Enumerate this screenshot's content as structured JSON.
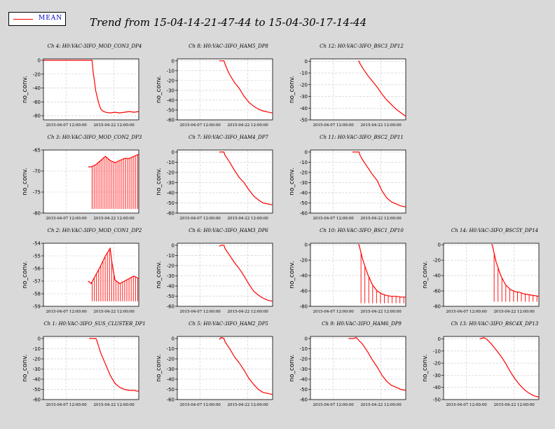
{
  "legend": {
    "label": "MEAN",
    "color": "#ff0000"
  },
  "title": "Trend from 15-04-14-21-47-44 to 15-04-30-17-14-44",
  "colors": {
    "line": "#ff0000",
    "grid": "#c8c8c8",
    "panel_bg": "#ffffff",
    "page_bg": "#d9d9d9"
  },
  "chart_data": [
    {
      "type": "line",
      "title": "Ch 4: H0:VAC-3IFO_MOD_CON3_DP4",
      "ylabel": "no_conv.",
      "ylim": [
        -86,
        2
      ],
      "yticks": [
        0,
        -20,
        -40,
        -60,
        -80
      ],
      "xticks": [
        "2015-04-07 12:00:00",
        "2015-04-22 12:00:00"
      ],
      "x": [
        0.0,
        0.51,
        0.52,
        0.55,
        0.58,
        0.6,
        0.62,
        0.65,
        0.7,
        0.75,
        0.8,
        0.85,
        0.9,
        0.95,
        1.0
      ],
      "y": [
        0,
        0,
        -15,
        -45,
        -62,
        -70,
        -73,
        -75,
        -76,
        -75,
        -76,
        -75,
        -74,
        -75,
        -74
      ]
    },
    {
      "type": "line",
      "title": "Ch 8: H0:VAC-3IFO_HAM5_DP8",
      "ylabel": "no_conv.",
      "ylim": [
        -60,
        2
      ],
      "yticks": [
        0,
        -10,
        -20,
        -30,
        -40,
        -50,
        -60
      ],
      "xticks": [
        "2015-04-07 12:00:00",
        "2015-04-22 12:00:00"
      ],
      "x": [
        0.44,
        0.49,
        0.5,
        0.52,
        0.55,
        0.6,
        0.65,
        0.7,
        0.75,
        0.8,
        0.85,
        0.9,
        0.95,
        1.0
      ],
      "y": [
        0,
        0,
        -3,
        -8,
        -14,
        -22,
        -28,
        -36,
        -42,
        -46,
        -49,
        -51,
        -52,
        -53
      ]
    },
    {
      "type": "line",
      "title": "Ch 12: H0:VAC-3IFO_BSC3_DP12",
      "ylabel": "no_conv.",
      "ylim": [
        -50,
        2
      ],
      "yticks": [
        0,
        -10,
        -20,
        -30,
        -40,
        -50
      ],
      "xticks": [
        "2015-04-07 12:00:00",
        "2015-04-22 12:00:00"
      ],
      "x": [
        0.5,
        0.51,
        0.52,
        0.55,
        0.6,
        0.65,
        0.7,
        0.75,
        0.8,
        0.85,
        0.9,
        0.95,
        1.0
      ],
      "y": [
        0,
        0,
        -2,
        -6,
        -12,
        -17,
        -22,
        -28,
        -33,
        -37,
        -41,
        -44,
        -47
      ]
    },
    {
      "type": "line",
      "title": "Ch 3: H0:VAC-3IFO_MOD_CON2_DP3",
      "ylabel": "no_conv.",
      "ylim": [
        -80,
        -65
      ],
      "yticks": [
        -65,
        -70,
        -75,
        -80
      ],
      "xticks": [
        "2015-04-07 12:00:00",
        "2015-04-22 12:00:00"
      ],
      "x": [
        0.47,
        0.5,
        0.55,
        0.6,
        0.65,
        0.7,
        0.75,
        0.8,
        0.85,
        0.9,
        0.95,
        1.0
      ],
      "y": [
        -69,
        -69,
        -68.5,
        -67.5,
        -66.5,
        -67.5,
        -68,
        -67.5,
        -67,
        -67,
        -66.5,
        -66
      ],
      "spikes_to": -79,
      "spike_count": 24
    },
    {
      "type": "line",
      "title": "Ch 7: H0:VAC-3IFO_HAM4_DP7",
      "ylabel": "no_conv.",
      "ylim": [
        -60,
        2
      ],
      "yticks": [
        0,
        -10,
        -20,
        -30,
        -40,
        -50,
        -60
      ],
      "xticks": [
        "2015-04-07 12:00:00",
        "2015-04-22 12:00:00"
      ],
      "x": [
        0.44,
        0.49,
        0.5,
        0.55,
        0.6,
        0.65,
        0.7,
        0.75,
        0.8,
        0.85,
        0.9,
        0.95,
        1.0
      ],
      "y": [
        0,
        0,
        -3,
        -10,
        -18,
        -25,
        -30,
        -37,
        -43,
        -47,
        -50,
        -51,
        -52
      ]
    },
    {
      "type": "line",
      "title": "Ch 11: H0:VAC-3IFO_BSC2_DP11",
      "ylabel": "no_conv.",
      "ylim": [
        -60,
        2
      ],
      "yticks": [
        0,
        -10,
        -20,
        -30,
        -40,
        -50,
        -60
      ],
      "xticks": [
        "2015-04-07 12:00:00",
        "2015-04-22 12:00:00"
      ],
      "x": [
        0.44,
        0.51,
        0.52,
        0.55,
        0.6,
        0.65,
        0.7,
        0.75,
        0.8,
        0.85,
        0.9,
        0.95,
        1.0
      ],
      "y": [
        0,
        0,
        -3,
        -8,
        -15,
        -22,
        -28,
        -38,
        -45,
        -49,
        -51,
        -53,
        -54
      ]
    },
    {
      "type": "line",
      "title": "Ch 2: H0:VAC-3IFO_MOD_CON1_DP2",
      "ylabel": "no_conv.",
      "ylim": [
        -59,
        -54
      ],
      "yticks": [
        -54,
        -55,
        -56,
        -57,
        -58,
        -59
      ],
      "xticks": [
        "2015-04-07 12:00:00",
        "2015-04-22 12:00:00"
      ],
      "x": [
        0.47,
        0.5,
        0.55,
        0.6,
        0.65,
        0.7,
        0.72,
        0.75,
        0.8,
        0.85,
        0.9,
        0.95,
        1.0
      ],
      "y": [
        -57,
        -57.2,
        -56.5,
        -55.8,
        -55.0,
        -54.4,
        -55.6,
        -56.9,
        -57.2,
        -57.0,
        -56.8,
        -56.6,
        -56.8
      ],
      "spikes_to": -58.6,
      "spike_count": 22
    },
    {
      "type": "line",
      "title": "Ch 6: H0:VAC-3IFO_HAM3_DP6",
      "ylabel": "no_conv.",
      "ylim": [
        -60,
        2
      ],
      "yticks": [
        0,
        -10,
        -20,
        -30,
        -40,
        -50,
        -60
      ],
      "xticks": [
        "2015-04-07 12:00:00",
        "2015-04-22 12:00:00"
      ],
      "x": [
        0.44,
        0.46,
        0.49,
        0.5,
        0.55,
        0.6,
        0.65,
        0.7,
        0.75,
        0.8,
        0.85,
        0.9,
        0.95,
        1.0
      ],
      "y": [
        -1,
        0,
        0,
        -3,
        -10,
        -17,
        -23,
        -30,
        -38,
        -45,
        -49,
        -52,
        -54,
        -55
      ]
    },
    {
      "type": "line",
      "title": "Ch 10: H0:VAC-3IFO_BSC1_DP10",
      "ylabel": "no_conv.",
      "ylim": [
        -80,
        2
      ],
      "yticks": [
        0,
        -20,
        -40,
        -60,
        -80
      ],
      "xticks": [
        "2015-04-07 12:00:00",
        "2015-04-22 12:00:00"
      ],
      "x": [
        0.5,
        0.51,
        0.52,
        0.55,
        0.6,
        0.65,
        0.7,
        0.75,
        0.8,
        0.85,
        0.9,
        0.95,
        1.0
      ],
      "y": [
        0,
        0,
        -5,
        -20,
        -38,
        -52,
        -60,
        -64,
        -66,
        -67,
        -67,
        -68,
        -68
      ],
      "spikes_to": -76,
      "spike_count": 12
    },
    {
      "type": "line",
      "title": "Ch 14: H0:VAC-3IFO_BSC5Y_DP14",
      "ylabel": "no_conv.",
      "ylim": [
        -80,
        2
      ],
      "yticks": [
        0,
        -20,
        -40,
        -60,
        -80
      ],
      "xticks": [
        "2015-04-07 12:00:00",
        "2015-04-22 12:00:00"
      ],
      "x": [
        0.5,
        0.51,
        0.52,
        0.55,
        0.6,
        0.65,
        0.7,
        0.75,
        0.8,
        0.85,
        0.9,
        0.95,
        1.0
      ],
      "y": [
        0,
        0,
        -5,
        -22,
        -40,
        -52,
        -58,
        -61,
        -62,
        -64,
        -65,
        -66,
        -67
      ],
      "spikes_to": -74,
      "spike_count": 12
    },
    {
      "type": "line",
      "title": "Ch 1: H0:VAC-3IFO_SUS_CLUSTER_DP1",
      "ylabel": "no_conv.",
      "ylim": [
        -60,
        2
      ],
      "yticks": [
        0,
        -10,
        -20,
        -30,
        -40,
        -50,
        -60
      ],
      "xticks": [
        "2015-04-07 12:00:00",
        "2015-04-22 12:00:00"
      ],
      "x": [
        0.48,
        0.55,
        0.56,
        0.58,
        0.6,
        0.65,
        0.7,
        0.75,
        0.8,
        0.85,
        0.9,
        0.95,
        1.0
      ],
      "y": [
        0,
        0,
        -2,
        -8,
        -14,
        -25,
        -36,
        -44,
        -48,
        -50,
        -51,
        -51,
        -52
      ]
    },
    {
      "type": "line",
      "title": "Ch 5: H0:VAC-3IFO_HAM2_DP5",
      "ylabel": "no_conv.",
      "ylim": [
        -60,
        2
      ],
      "yticks": [
        0,
        -10,
        -20,
        -30,
        -40,
        -50,
        -60
      ],
      "xticks": [
        "2015-04-07 12:00:00",
        "2015-04-22 12:00:00"
      ],
      "x": [
        0.44,
        0.46,
        0.49,
        0.5,
        0.55,
        0.6,
        0.65,
        0.7,
        0.75,
        0.8,
        0.85,
        0.9,
        0.95,
        1.0
      ],
      "y": [
        -1,
        1,
        0,
        -3,
        -10,
        -18,
        -24,
        -31,
        -39,
        -45,
        -50,
        -53,
        -54,
        -55
      ]
    },
    {
      "type": "line",
      "title": "Ch 9: H0:VAC-3IFO_HAM6_DP9",
      "ylabel": "no_conv.",
      "ylim": [
        -60,
        2
      ],
      "yticks": [
        0,
        -10,
        -20,
        -30,
        -40,
        -50,
        -60
      ],
      "xticks": [
        "2015-04-07 12:00:00",
        "2015-04-22 12:00:00"
      ],
      "x": [
        0.4,
        0.45,
        0.48,
        0.5,
        0.55,
        0.6,
        0.65,
        0.7,
        0.75,
        0.8,
        0.85,
        0.9,
        0.95,
        1.0
      ],
      "y": [
        0,
        0,
        1,
        -1,
        -6,
        -13,
        -21,
        -28,
        -36,
        -42,
        -46,
        -48,
        -50,
        -51
      ]
    },
    {
      "type": "line",
      "title": "Ch 13: H0:VAC-3IFO_BSC4X_DP13",
      "ylabel": "no_conv.",
      "ylim": [
        -50,
        2
      ],
      "yticks": [
        0,
        -10,
        -20,
        -30,
        -40,
        -50
      ],
      "xticks": [
        "2015-04-07 12:00:00",
        "2015-04-22 12:00:00"
      ],
      "x": [
        0.38,
        0.42,
        0.45,
        0.5,
        0.55,
        0.6,
        0.65,
        0.7,
        0.75,
        0.8,
        0.85,
        0.9,
        0.95,
        1.0
      ],
      "y": [
        0,
        1,
        0,
        -4,
        -9,
        -14,
        -20,
        -27,
        -33,
        -38,
        -42,
        -45,
        -47,
        -48
      ]
    }
  ]
}
